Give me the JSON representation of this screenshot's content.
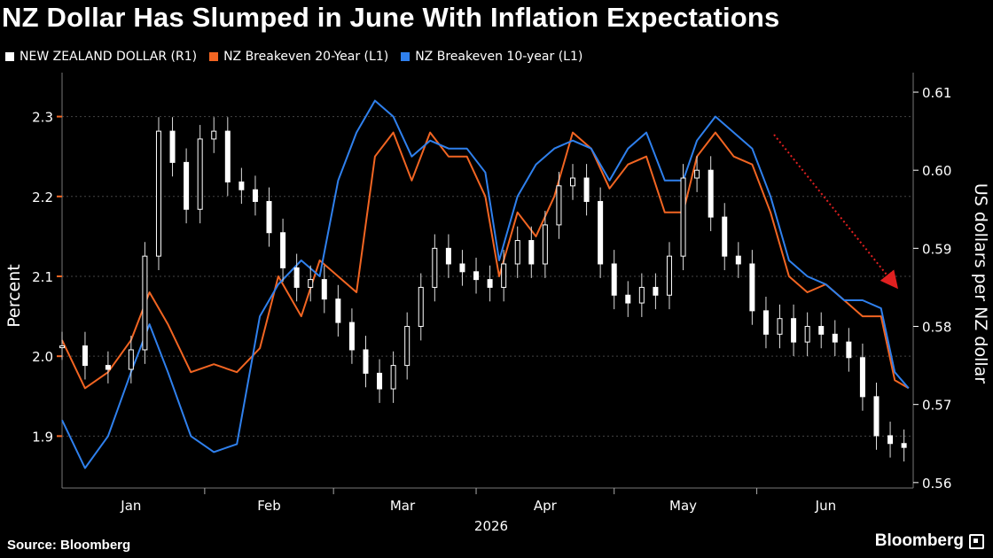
{
  "header": {
    "title": "NZ Dollar Has Slumped in June With Inflation Expectations"
  },
  "legend": [
    {
      "label": "NEW ZEALAND DOLLAR (R1)",
      "color": "#ffffff"
    },
    {
      "label": "NZ Breakeven 20-Year (L1)",
      "color": "#f26522"
    },
    {
      "label": "NZ Breakeven 10-year (L1)",
      "color": "#2f80ed"
    }
  ],
  "footer": {
    "source": "Source: Bloomberg",
    "brand": "Bloomberg"
  },
  "chart_data": {
    "type": "line",
    "title": "NZ Dollar Has Slumped in June With Inflation Expectations",
    "xlabel": "2026",
    "ylabel_left": "Percent",
    "ylabel_right": "US dollars per NZ dollar",
    "x_tick_labels": [
      "Jan",
      "Feb",
      "Mar",
      "Apr",
      "May",
      "Jun"
    ],
    "x_axis_year": "2026",
    "y_left_ticks": [
      "1.9",
      "2.0",
      "2.1",
      "2.2",
      "2.3"
    ],
    "y_right_ticks": [
      "0.56",
      "0.57",
      "0.58",
      "0.59",
      "0.60",
      "0.61"
    ],
    "y_left_range": [
      1.835,
      2.355
    ],
    "y_right_range": [
      0.5593,
      0.6125
    ],
    "x_range_days": [
      0,
      185
    ],
    "grid": true,
    "annotation": "red dotted arrow pointing downward from mid-May toward late June",
    "series": [
      {
        "name": "NZ Breakeven 20-Year (L1)",
        "axis": "left",
        "color": "#f26522",
        "x": [
          0,
          5,
          10,
          15,
          19,
          23,
          28,
          33,
          38,
          43,
          47,
          52,
          56,
          60,
          64,
          68,
          72,
          76,
          80,
          84,
          88,
          92,
          95,
          99,
          103,
          107,
          111,
          115,
          119,
          123,
          127,
          131,
          135,
          138,
          142,
          146,
          150,
          154,
          158,
          162,
          166,
          170,
          174,
          178,
          181,
          184
        ],
        "y": [
          2.02,
          1.96,
          1.98,
          2.02,
          2.08,
          2.04,
          1.98,
          1.99,
          1.98,
          2.01,
          2.1,
          2.05,
          2.12,
          2.1,
          2.08,
          2.25,
          2.28,
          2.22,
          2.28,
          2.25,
          2.25,
          2.2,
          2.1,
          2.18,
          2.15,
          2.2,
          2.28,
          2.26,
          2.21,
          2.24,
          2.25,
          2.18,
          2.18,
          2.25,
          2.28,
          2.25,
          2.24,
          2.18,
          2.1,
          2.08,
          2.09,
          2.07,
          2.05,
          2.05,
          1.97,
          1.96
        ]
      },
      {
        "name": "NZ Breakeven 10-year (L1)",
        "axis": "left",
        "color": "#2f80ed",
        "x": [
          0,
          5,
          10,
          15,
          19,
          23,
          28,
          33,
          38,
          43,
          47,
          52,
          56,
          60,
          64,
          68,
          72,
          76,
          80,
          84,
          88,
          92,
          95,
          99,
          103,
          107,
          111,
          115,
          119,
          123,
          127,
          131,
          135,
          138,
          142,
          146,
          150,
          154,
          158,
          162,
          166,
          170,
          174,
          178,
          181,
          184
        ],
        "y": [
          1.92,
          1.86,
          1.9,
          1.98,
          2.04,
          1.98,
          1.9,
          1.88,
          1.89,
          2.05,
          2.09,
          2.12,
          2.1,
          2.22,
          2.28,
          2.32,
          2.3,
          2.25,
          2.27,
          2.26,
          2.26,
          2.23,
          2.12,
          2.2,
          2.24,
          2.26,
          2.27,
          2.26,
          2.22,
          2.26,
          2.28,
          2.22,
          2.22,
          2.27,
          2.3,
          2.28,
          2.26,
          2.2,
          2.12,
          2.1,
          2.09,
          2.07,
          2.07,
          2.06,
          1.98,
          1.96
        ]
      },
      {
        "name": "NEW ZEALAND DOLLAR (R1)",
        "axis": "right",
        "color": "#ffffff",
        "x": [
          0,
          5,
          10,
          15,
          18,
          21,
          24,
          27,
          30,
          33,
          36,
          39,
          42,
          45,
          48,
          51,
          54,
          57,
          60,
          63,
          66,
          69,
          72,
          75,
          78,
          81,
          84,
          87,
          90,
          93,
          96,
          99,
          102,
          105,
          108,
          111,
          114,
          117,
          120,
          123,
          126,
          129,
          132,
          135,
          138,
          141,
          144,
          147,
          150,
          153,
          156,
          159,
          162,
          165,
          168,
          171,
          174,
          177,
          180,
          183
        ],
        "y": [
          0.5775,
          0.575,
          0.5745,
          0.577,
          0.589,
          0.605,
          0.601,
          0.595,
          0.604,
          0.605,
          0.5985,
          0.5975,
          0.596,
          0.592,
          0.5875,
          0.585,
          0.586,
          0.5835,
          0.5805,
          0.577,
          0.574,
          0.572,
          0.575,
          0.58,
          0.585,
          0.59,
          0.588,
          0.587,
          0.586,
          0.585,
          0.588,
          0.591,
          0.588,
          0.593,
          0.598,
          0.599,
          0.596,
          0.588,
          0.584,
          0.583,
          0.585,
          0.584,
          0.589,
          0.599,
          0.6,
          0.594,
          0.589,
          0.588,
          0.582,
          0.579,
          0.581,
          0.578,
          0.58,
          0.579,
          0.578,
          0.576,
          0.571,
          0.566,
          0.565,
          0.5645
        ]
      }
    ]
  }
}
